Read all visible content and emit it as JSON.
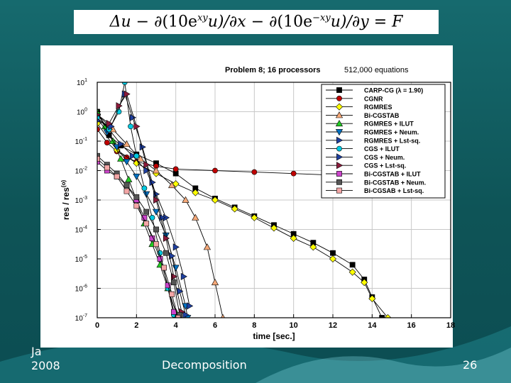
{
  "slide": {
    "equation": {
      "delta_u": "Δu",
      "minus1": "−",
      "term1_a": "∂(10e",
      "term1_sup": "xy",
      "term1_b": "u)/∂x",
      "minus2": "−",
      "term2_a": "∂(10e",
      "term2_sup": "−xy",
      "term2_b": "u)/∂y",
      "equals": "=",
      "rhs": "F"
    },
    "footer_left_line1": "Ja",
    "footer_left_line2": "2008",
    "footer_center": "Decomposition",
    "page_number": "26"
  },
  "chart_data": {
    "type": "line",
    "title": "Problem 8;  16 processors",
    "subtitle": "512,000 equations",
    "xlabel": "time [sec.]",
    "ylabel": "res / res",
    "ylabel_sup": "(o)",
    "xlim": [
      0,
      18
    ],
    "ylim_exp": [
      -7,
      1
    ],
    "yscale": "log",
    "grid": true,
    "legend_position": "top-right",
    "x_ticks": [
      "0",
      "2",
      "4",
      "6",
      "8",
      "10",
      "12",
      "14",
      "16",
      "18"
    ],
    "y_ticks": [
      {
        "base": "10",
        "exp": "1"
      },
      {
        "base": "10",
        "exp": "0"
      },
      {
        "base": "10",
        "exp": "-1"
      },
      {
        "base": "10",
        "exp": "-2"
      },
      {
        "base": "10",
        "exp": "-3"
      },
      {
        "base": "10",
        "exp": "-4"
      },
      {
        "base": "10",
        "exp": "-5"
      },
      {
        "base": "10",
        "exp": "-6"
      },
      {
        "base": "10",
        "exp": "-7"
      }
    ],
    "series": [
      {
        "name": "CARP-CG  (λ = 1.90)",
        "marker": "square",
        "color": "#000000",
        "points": [
          [
            0,
            0.0
          ],
          [
            0.6,
            -0.8
          ],
          [
            1.2,
            -1.15
          ],
          [
            2,
            -1.45
          ],
          [
            3,
            -1.75
          ],
          [
            4,
            -2.1
          ],
          [
            5,
            -2.6
          ],
          [
            6,
            -2.95
          ],
          [
            7,
            -3.25
          ],
          [
            8,
            -3.55
          ],
          [
            9,
            -3.85
          ],
          [
            10,
            -4.15
          ],
          [
            11,
            -4.45
          ],
          [
            12,
            -4.8
          ],
          [
            13,
            -5.2
          ],
          [
            13.6,
            -5.7
          ],
          [
            14,
            -6.3
          ],
          [
            14.5,
            -7.0
          ]
        ]
      },
      {
        "name": "CGNR",
        "marker": "circle",
        "color": "#c00000",
        "points": [
          [
            0,
            -0.6
          ],
          [
            0.5,
            -1.05
          ],
          [
            1,
            -1.35
          ],
          [
            1.5,
            -1.55
          ],
          [
            2,
            -1.7
          ],
          [
            3,
            -1.85
          ],
          [
            4,
            -1.95
          ],
          [
            6,
            -2.0
          ],
          [
            8,
            -2.05
          ],
          [
            10,
            -2.1
          ],
          [
            11.8,
            -2.15
          ]
        ]
      },
      {
        "name": "RGMRES",
        "marker": "diamond",
        "color": "#ffff00",
        "points": [
          [
            0,
            -0.4
          ],
          [
            1,
            -1.3
          ],
          [
            2,
            -1.75
          ],
          [
            3,
            -2.1
          ],
          [
            4,
            -2.45
          ],
          [
            5,
            -2.75
          ],
          [
            6,
            -3.0
          ],
          [
            7,
            -3.3
          ],
          [
            8,
            -3.6
          ],
          [
            9,
            -3.95
          ],
          [
            10,
            -4.3
          ],
          [
            11,
            -4.6
          ],
          [
            12,
            -5.0
          ],
          [
            13,
            -5.45
          ],
          [
            13.6,
            -5.8
          ],
          [
            14,
            -6.35
          ],
          [
            14.8,
            -7.0
          ]
        ]
      },
      {
        "name": "Bi-CGSTAB",
        "marker": "triangle-up",
        "color": "#f5a878",
        "points": [
          [
            0,
            -0.1
          ],
          [
            0.8,
            -0.6
          ],
          [
            1.5,
            -1.1
          ],
          [
            2.2,
            -1.6
          ],
          [
            3,
            -2.0
          ],
          [
            3.8,
            -2.5
          ],
          [
            4.5,
            -3.0
          ],
          [
            5,
            -3.6
          ],
          [
            5.6,
            -4.6
          ],
          [
            6,
            -5.8
          ],
          [
            6.4,
            -7.0
          ]
        ]
      },
      {
        "name": "RGMRES + ILUT",
        "marker": "triangle-up",
        "color": "#22cc22",
        "points": [
          [
            0,
            0.0
          ],
          [
            0.4,
            -0.5
          ],
          [
            0.8,
            -1.0
          ],
          [
            1.2,
            -1.6
          ],
          [
            1.6,
            -2.3
          ],
          [
            2,
            -3.0
          ],
          [
            2.4,
            -3.8
          ],
          [
            2.8,
            -4.5
          ],
          [
            3.2,
            -5.2
          ],
          [
            3.6,
            -6.0
          ],
          [
            4,
            -6.8
          ]
        ]
      },
      {
        "name": "RGMRES + Neum.",
        "marker": "triangle-down",
        "color": "#0070c0",
        "points": [
          [
            0,
            -0.2
          ],
          [
            0.5,
            -0.7
          ],
          [
            1,
            -1.2
          ],
          [
            1.5,
            -1.7
          ],
          [
            2,
            -2.2
          ],
          [
            2.5,
            -2.8
          ],
          [
            3,
            -3.4
          ],
          [
            3.5,
            -4.2
          ],
          [
            4,
            -5.3
          ],
          [
            4.5,
            -6.6
          ],
          [
            4.6,
            -7.0
          ]
        ]
      },
      {
        "name": "RGMRES + Lst-sq.",
        "marker": "triangle-right",
        "color": "#1f3f9f",
        "points": [
          [
            0,
            -0.1
          ],
          [
            0.6,
            -0.6
          ],
          [
            1.2,
            -1.1
          ],
          [
            1.8,
            -1.5
          ],
          [
            2.5,
            -2.0
          ],
          [
            3,
            -2.8
          ],
          [
            3.5,
            -3.6
          ],
          [
            4,
            -4.6
          ],
          [
            4.4,
            -5.6
          ],
          [
            4.7,
            -6.6
          ]
        ]
      },
      {
        "name": "CGS + ILUT",
        "marker": "circle",
        "color": "#00c8e0",
        "points": [
          [
            0,
            -0.2
          ],
          [
            0.6,
            -0.6
          ],
          [
            1.1,
            0.0
          ],
          [
            1.4,
            1.0
          ],
          [
            1.7,
            -0.5
          ],
          [
            2,
            -1.5
          ],
          [
            2.4,
            -2.6
          ],
          [
            2.8,
            -3.6
          ],
          [
            3.2,
            -4.8
          ],
          [
            3.6,
            -6.0
          ],
          [
            3.9,
            -6.9
          ]
        ]
      },
      {
        "name": "CGS + Neum.",
        "marker": "triangle-right",
        "color": "#1f3f9f",
        "points": [
          [
            0,
            -0.3
          ],
          [
            0.7,
            -0.5
          ],
          [
            1.4,
            0.6
          ],
          [
            1.8,
            -0.2
          ],
          [
            2.3,
            -1.2
          ],
          [
            2.8,
            -2.4
          ],
          [
            3.3,
            -3.6
          ],
          [
            3.8,
            -4.9
          ],
          [
            4.2,
            -6.1
          ],
          [
            4.5,
            -6.9
          ]
        ]
      },
      {
        "name": "CGS + Lst-sq.",
        "marker": "triangle-right",
        "color": "#8b1a3a",
        "points": [
          [
            0,
            -0.1
          ],
          [
            0.6,
            -0.4
          ],
          [
            1.1,
            0.2
          ],
          [
            1.5,
            0.6
          ],
          [
            2,
            -0.5
          ],
          [
            2.5,
            -1.8
          ],
          [
            3,
            -3.0
          ],
          [
            3.5,
            -4.3
          ],
          [
            3.9,
            -5.6
          ],
          [
            4.3,
            -6.8
          ]
        ]
      },
      {
        "name": "Bi-CGSTAB + ILUT",
        "marker": "square",
        "color": "#cc44cc",
        "points": [
          [
            0,
            -1.7
          ],
          [
            0.5,
            -2.0
          ],
          [
            1,
            -2.2
          ],
          [
            1.5,
            -2.5
          ],
          [
            2,
            -3.0
          ],
          [
            2.4,
            -3.6
          ],
          [
            2.8,
            -4.3
          ],
          [
            3.2,
            -5.0
          ],
          [
            3.6,
            -5.9
          ],
          [
            3.9,
            -6.8
          ]
        ]
      },
      {
        "name": "Bi-CGSTAB + Neum.",
        "marker": "square",
        "color": "#555555",
        "points": [
          [
            0,
            -1.5
          ],
          [
            0.5,
            -1.8
          ],
          [
            1,
            -2.1
          ],
          [
            1.5,
            -2.5
          ],
          [
            2,
            -2.9
          ],
          [
            2.5,
            -3.4
          ],
          [
            3,
            -4.0
          ],
          [
            3.5,
            -4.8
          ],
          [
            3.9,
            -5.8
          ],
          [
            4.2,
            -6.9
          ]
        ]
      },
      {
        "name": "Bi-CGSAB + Lst-sq.",
        "marker": "square",
        "color": "#f4a6a6",
        "points": [
          [
            0,
            -1.6
          ],
          [
            0.5,
            -1.9
          ],
          [
            1,
            -2.2
          ],
          [
            1.5,
            -2.7
          ],
          [
            2,
            -3.2
          ],
          [
            2.5,
            -3.8
          ],
          [
            3,
            -4.5
          ],
          [
            3.4,
            -5.3
          ],
          [
            3.8,
            -6.2
          ],
          [
            4.1,
            -7.0
          ]
        ]
      }
    ]
  }
}
